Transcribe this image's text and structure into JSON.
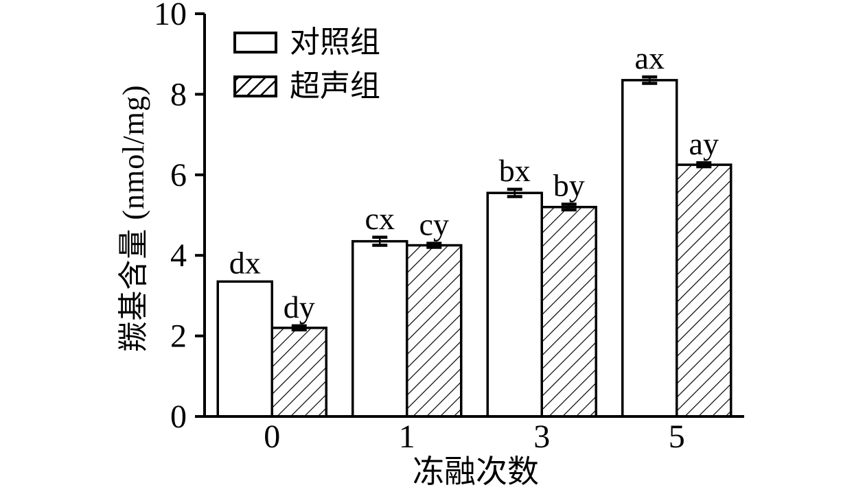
{
  "figure": {
    "background": "#ffffff",
    "ink": "#000000"
  },
  "chart_data": {
    "type": "bar",
    "title": "",
    "xlabel": "冻融次数",
    "ylabel": "羰基含量 (nmol/mg)",
    "categories": [
      "0",
      "1",
      "3",
      "5"
    ],
    "series": [
      {
        "name": "对照组",
        "fill": "white",
        "values": [
          3.35,
          4.35,
          5.55,
          8.35
        ],
        "errors": [
          0,
          0.1,
          0.09,
          0.08
        ],
        "point_labels": [
          "dx",
          "cx",
          "bx",
          "ax"
        ]
      },
      {
        "name": "超声组",
        "fill": "hatch",
        "values": [
          2.2,
          4.25,
          5.2,
          6.25
        ],
        "errors": [
          0.05,
          0.05,
          0.07,
          0.05
        ],
        "point_labels": [
          "dy",
          "cy",
          "by",
          "ay"
        ]
      }
    ],
    "ylim": [
      0,
      10
    ],
    "yticks": [
      "0",
      "2",
      "4",
      "6",
      "8",
      "10"
    ],
    "grid": false,
    "legend_position": "top-left",
    "error_bars": true
  }
}
